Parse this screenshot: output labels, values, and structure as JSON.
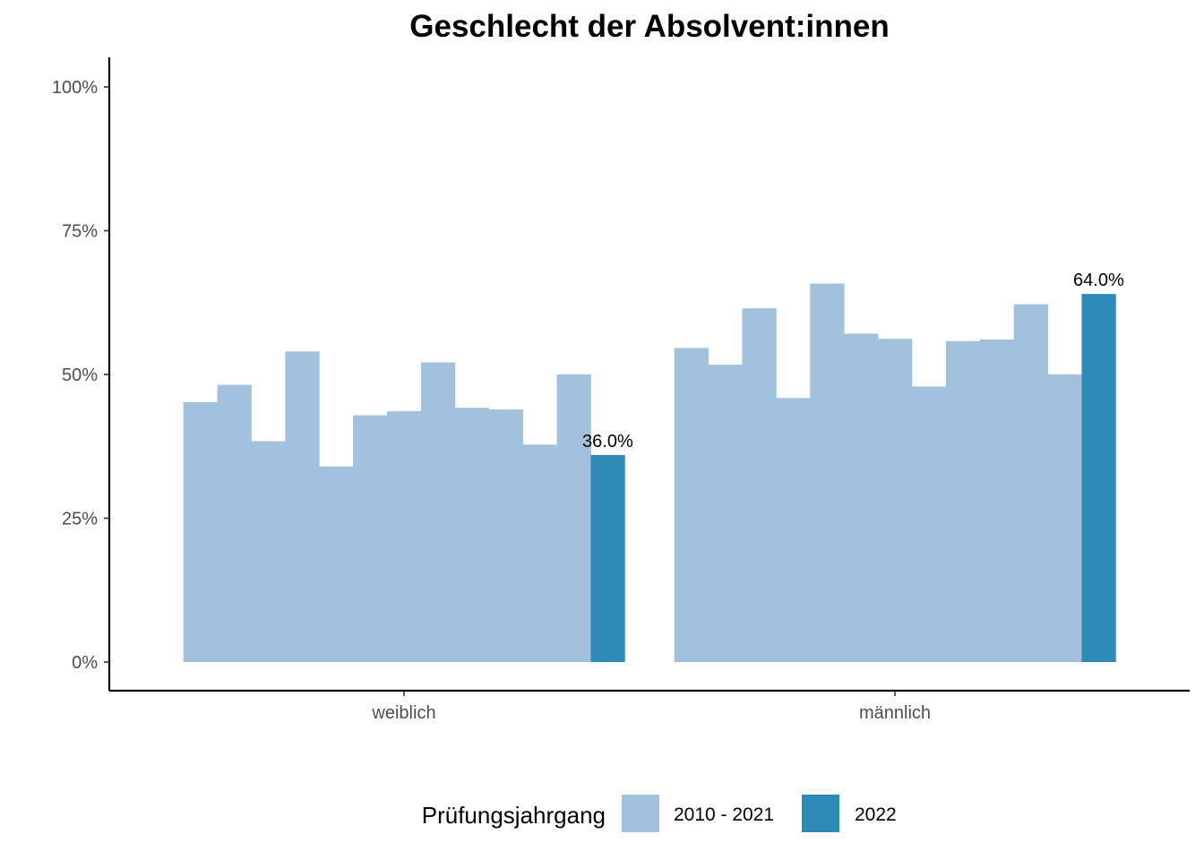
{
  "chart_data": {
    "type": "bar",
    "title": "Geschlecht der Absolvent:innen",
    "xlabel": "",
    "ylabel": "",
    "ylim": [
      0,
      1.05
    ],
    "y_ticks": [
      {
        "value": 0,
        "label": "0%"
      },
      {
        "value": 0.25,
        "label": "25%"
      },
      {
        "value": 0.5,
        "label": "50%"
      },
      {
        "value": 0.75,
        "label": "75%"
      },
      {
        "value": 1.0,
        "label": "100%"
      }
    ],
    "grid": false,
    "legend_position": "bottom",
    "categories": [
      "weiblich",
      "männlich"
    ],
    "series": [
      {
        "group": "2010 - 2021",
        "values": [
          0.452,
          0.546
        ]
      },
      {
        "group": "2010 - 2021",
        "values": [
          0.482,
          0.517
        ]
      },
      {
        "group": "2010 - 2021",
        "values": [
          0.384,
          0.615
        ]
      },
      {
        "group": "2010 - 2021",
        "values": [
          0.54,
          0.459
        ]
      },
      {
        "group": "2010 - 2021",
        "values": [
          0.34,
          0.658
        ]
      },
      {
        "group": "2010 - 2021",
        "values": [
          0.429,
          0.571
        ]
      },
      {
        "group": "2010 - 2021",
        "values": [
          0.436,
          0.562
        ]
      },
      {
        "group": "2010 - 2021",
        "values": [
          0.521,
          0.479
        ]
      },
      {
        "group": "2010 - 2021",
        "values": [
          0.442,
          0.558
        ]
      },
      {
        "group": "2010 - 2021",
        "values": [
          0.439,
          0.561
        ]
      },
      {
        "group": "2010 - 2021",
        "values": [
          0.378,
          0.622
        ]
      },
      {
        "group": "2010 - 2021",
        "values": [
          0.5,
          0.5
        ]
      },
      {
        "group": "2022",
        "values": [
          0.36,
          0.64
        ],
        "labels": [
          "36.0%",
          "64.0%"
        ]
      }
    ],
    "legend": {
      "title": "Prüfungsjahrgang",
      "entries": [
        {
          "label": "2010 - 2021",
          "color": "#a1c1dc"
        },
        {
          "label": "2022",
          "color": "#2e8bb8"
        }
      ]
    }
  }
}
